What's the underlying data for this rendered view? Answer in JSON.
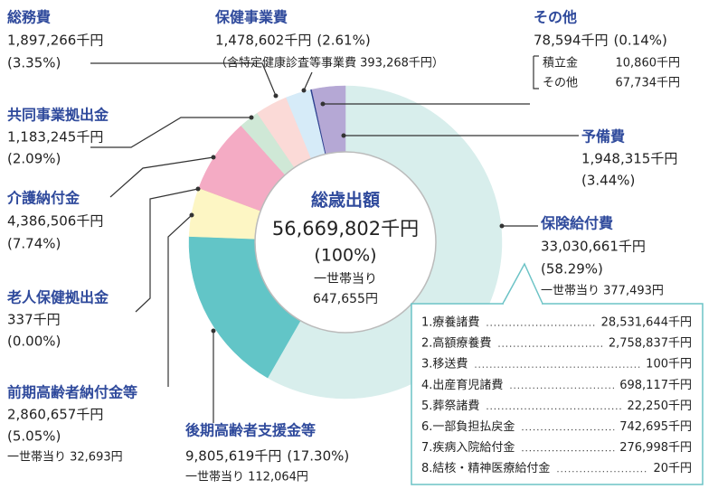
{
  "chart_data": {
    "type": "pie",
    "categories": [
      "保険給付費",
      "後期高齢者支援金等",
      "前期高齢者納付金等",
      "老人保健拠出金",
      "介護納付金",
      "共同事業拠出金",
      "総務費",
      "保健事業費",
      "その他",
      "予備費"
    ],
    "values": [
      33030661,
      9805619,
      2860657,
      337,
      4386506,
      1183245,
      1897266,
      1478602,
      78594,
      1948315
    ],
    "value_labels": [
      "33,030,661千円",
      "9,805,619千円",
      "2,860,657千円",
      "337千円",
      "4,386,506千円",
      "1,183,245千円",
      "1,897,266千円",
      "1,478,602千円",
      "78,594千円",
      "1,948,315千円"
    ],
    "percents": [
      58.29,
      17.3,
      5.05,
      0.0,
      7.74,
      2.09,
      3.35,
      2.61,
      0.14,
      3.44
    ],
    "percent_labels": [
      "(58.29%)",
      "(17.30%)",
      "(5.05%)",
      "(0.00%)",
      "(7.74%)",
      "(2.09%)",
      "(3.35%)",
      "(2.61%)",
      "(0.14%)",
      "(3.44%)"
    ],
    "per_household_labels": [
      "一世帯当り 377,493円",
      "一世帯当り 112,064円",
      "一世帯当り 32,693円",
      null,
      null,
      null,
      null,
      null,
      null,
      null
    ],
    "colors": [
      "#d8eeec",
      "#62c5c7",
      "#fdf6c4",
      "#e8e0a0",
      "#f4abc4",
      "#cfe8d6",
      "#fbdad7",
      "#d6ebf8",
      "#2c3f8f",
      "#b5a8d5"
    ],
    "center": {
      "title": "総歳出額",
      "total_label": "56,669,802千円",
      "percent_label": "(100%)",
      "per_household_title": "一世帯当り",
      "per_household_label": "647,655円"
    },
    "health_note": "（含特定健康診査等事業費 393,268千円）",
    "other_breakdown": [
      {
        "label": "積立金",
        "value_label": "10,860千円"
      },
      {
        "label": "その他",
        "value_label": "67,734千円"
      }
    ],
    "benefit_breakdown": [
      {
        "label": "1.療養諸費",
        "value_label": "28,531,644千円"
      },
      {
        "label": "2.高額療養費",
        "value_label": "2,758,837千円"
      },
      {
        "label": "3.移送費",
        "value_label": "100千円"
      },
      {
        "label": "4.出産育児諸費",
        "value_label": "698,117千円"
      },
      {
        "label": "5.葬祭諸費",
        "value_label": "22,250千円"
      },
      {
        "label": "6.一部負担払戻金",
        "value_label": "742,695千円"
      },
      {
        "label": "7.疾病入院給付金",
        "value_label": "276,998千円"
      },
      {
        "label": "8.結核・精神医療給付金",
        "value_label": "20千円"
      }
    ]
  }
}
